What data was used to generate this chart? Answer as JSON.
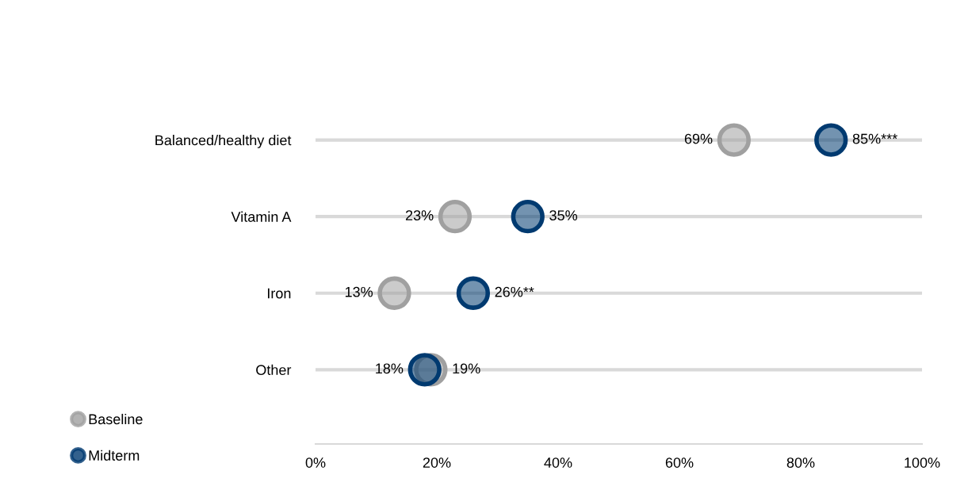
{
  "chart_data": {
    "type": "scatter",
    "orientation": "horizontal",
    "categories": [
      "Balanced/healthy diet",
      "Vitamin A",
      "Iron",
      "Other"
    ],
    "series": [
      {
        "name": "Baseline",
        "color": "#a0a0a0",
        "values": [
          69,
          23,
          13,
          19
        ],
        "value_labels": [
          "69%",
          "23%",
          "13%",
          "19%"
        ]
      },
      {
        "name": "Midterm",
        "color": "#003a70",
        "values": [
          85,
          35,
          26,
          18
        ],
        "value_labels": [
          "85%***",
          "35%",
          "26%**",
          "18%"
        ]
      }
    ],
    "xlim": [
      0,
      100
    ],
    "xticks": [
      {
        "value": 0,
        "label": "0%"
      },
      {
        "value": 20,
        "label": "20%"
      },
      {
        "value": 40,
        "label": "40%"
      },
      {
        "value": 60,
        "label": "60%"
      },
      {
        "value": 80,
        "label": "80%"
      },
      {
        "value": 100,
        "label": "100%"
      }
    ],
    "grid": "y",
    "legend": "bottom left",
    "marker": "circle"
  }
}
